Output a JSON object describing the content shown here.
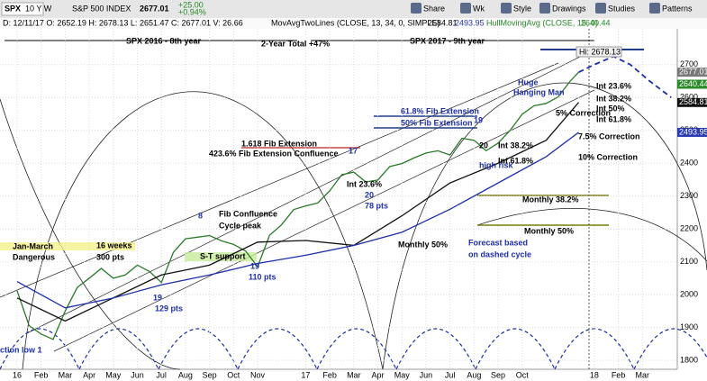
{
  "toolbar": {
    "symbol": "SPX",
    "period": "10 Y W",
    "name": "S&P 500 INDEX",
    "last": "2677.01",
    "change": "+25.00",
    "change_pct": "+0.94%",
    "buttons": [
      "Share",
      "Wk",
      "Style",
      "Drawings",
      "Studies",
      "Patterns"
    ]
  },
  "legend": {
    "ohlc": "D: 12/11/17  O: 2652.19  H: 2678.13  L: 2651.47  C: 2677.01  V: 26.66",
    "study1": "MovAvgTwoLines (CLOSE, 13, 34, 0, SIMPLE)",
    "study1_values": [
      "2584.81",
      "2493.95"
    ],
    "study2": "HullMovingAvg (CLOSE, 15, 0)",
    "study2_value": "2640.44"
  },
  "chart_data": {
    "type": "line",
    "xlim": [
      -0.71,
      27.45
    ],
    "ylim": [
      1773,
      2809
    ],
    "xticks": [
      {
        "value": 0,
        "label": "16"
      },
      {
        "value": 1,
        "label": "Feb"
      },
      {
        "value": 2,
        "label": "Mar"
      },
      {
        "value": 3,
        "label": "Apr"
      },
      {
        "value": 4,
        "label": "May"
      },
      {
        "value": 5,
        "label": "Jun"
      },
      {
        "value": 6,
        "label": "Jul"
      },
      {
        "value": 7,
        "label": "Aug"
      },
      {
        "value": 8,
        "label": "Sep"
      },
      {
        "value": 9,
        "label": "Oct"
      },
      {
        "value": 10,
        "label": "Nov"
      },
      {
        "value": 12,
        "label": "17"
      },
      {
        "value": 13,
        "label": "Feb"
      },
      {
        "value": 14,
        "label": "Mar"
      },
      {
        "value": 15,
        "label": "Apr"
      },
      {
        "value": 16,
        "label": "May"
      },
      {
        "value": 17,
        "label": "Jun"
      },
      {
        "value": 18,
        "label": "Jul"
      },
      {
        "value": 19,
        "label": "Aug"
      },
      {
        "value": 20,
        "label": "Sep"
      },
      {
        "value": 21,
        "label": "Oct"
      },
      {
        "value": 24,
        "label": "18"
      },
      {
        "value": 25,
        "label": "Feb"
      },
      {
        "value": 26,
        "label": "Mar"
      }
    ],
    "yticks": [
      1800,
      1900,
      2000,
      2100,
      2200,
      2300,
      2400,
      2500,
      2600,
      2700
    ],
    "grid": true,
    "series": [
      {
        "color": "#2a7a2a",
        "style": "solid",
        "x": [
          0,
          0.5,
          1,
          1.5,
          2,
          2.5,
          3,
          3.5,
          4,
          4.5,
          5,
          5.5,
          6,
          6.5,
          7,
          7.5,
          8,
          8.5,
          9,
          9.5,
          10,
          10.5,
          11,
          11.5,
          12,
          12.5,
          13,
          13.5,
          14,
          14.5,
          15,
          15.5,
          16,
          16.5,
          17,
          17.5,
          18,
          18.5,
          19,
          19.5,
          20,
          20.5,
          21,
          21.5,
          22,
          22.5,
          23,
          23.35
        ],
        "values": [
          2012,
          1906,
          1880,
          1864,
          1950,
          2022,
          2050,
          2080,
          2050,
          2060,
          2090,
          2071,
          2037,
          2129,
          2170,
          2175,
          2180,
          2164,
          2153,
          2133,
          2085,
          2181,
          2213,
          2259,
          2270,
          2279,
          2316,
          2365,
          2373,
          2343,
          2349,
          2390,
          2399,
          2416,
          2431,
          2438,
          2425,
          2476,
          2470,
          2438,
          2461,
          2500,
          2549,
          2575,
          2582,
          2602,
          2650,
          2677
        ]
      },
      {
        "color": "#111111",
        "style": "solid",
        "x": [
          0,
          2,
          4,
          6,
          8,
          10,
          12,
          14,
          16,
          18,
          20,
          22,
          23.35
        ],
        "values": [
          1990,
          1920,
          1990,
          2060,
          2090,
          2160,
          2165,
          2150,
          2240,
          2340,
          2400,
          2470,
          2585
        ]
      },
      {
        "color": "#1e2fa8",
        "style": "solid",
        "x": [
          0,
          2,
          4,
          6,
          8,
          10,
          12,
          14,
          16,
          18,
          20,
          22,
          23.35
        ],
        "values": [
          2040,
          1960,
          1990,
          2030,
          2060,
          2095,
          2120,
          2150,
          2190,
          2260,
          2340,
          2420,
          2494
        ]
      },
      {
        "color": "#1e2fa8",
        "style": "dashed",
        "x": [
          23.35,
          24,
          24.8,
          25.5,
          26.3,
          27.2
        ],
        "values": [
          2677,
          2700,
          2725,
          2700,
          2650,
          2600
        ]
      }
    ],
    "price_tags": [
      {
        "value": 2677.01,
        "color": "#777777"
      },
      {
        "value": 2640.44,
        "color": "#2a8a2a"
      },
      {
        "value": 2584.81,
        "color": "#111111"
      },
      {
        "value": 2493.95,
        "color": "#2a3ab0"
      }
    ],
    "hi_label": "Hi: 2678.13",
    "annotations": [
      "SPX 2016 - 8th year",
      "2-Year Total +47%",
      "SPX 2017 - 9th year",
      "Huge",
      "Hanging Man",
      "Int  23.6%",
      "Int  38.2%",
      "Int 50%",
      "5% Correction",
      "Int  61.8%",
      "61.8% Fib Extension",
      "50% Fib Extension",
      "19",
      "7.5% Correction",
      "1.618 Fib Extension",
      "423.6% Fib Extension Confluence",
      "17",
      "Int  38.2%",
      "20",
      "high risk",
      "Int  61.8%",
      "10% Correction",
      "Int 23.6%",
      "20",
      "78 pts",
      "8",
      "Fib Confluence",
      "Cycle peak",
      "Monthly 38.2%",
      "Monthly 50%",
      "Jan-March",
      "Dangerous",
      "16 weeks",
      "300 pts",
      "S-T support",
      "19",
      "110 pts",
      "Monthly 50%",
      "Forecast based",
      "on dashed cycle",
      "19",
      "129 pts",
      "ction low 1"
    ]
  }
}
